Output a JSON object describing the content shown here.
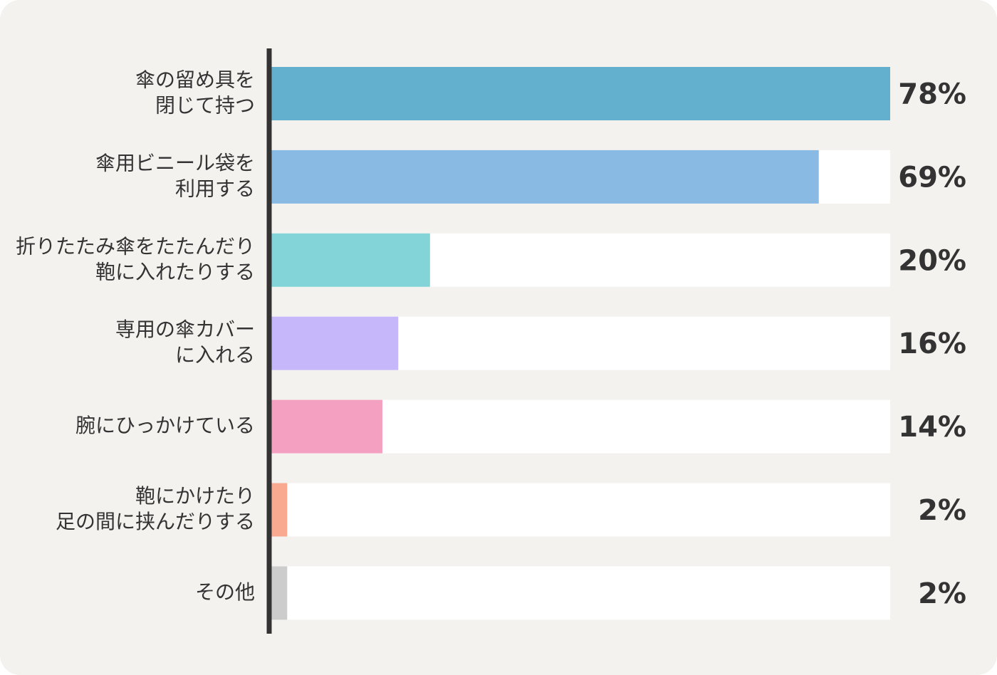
{
  "chart_data": {
    "type": "bar",
    "orientation": "horizontal",
    "categories": [
      [
        "傘の留め具を",
        "閉じて持つ"
      ],
      [
        "傘用ビニール袋を",
        "利用する"
      ],
      [
        "折りたたみ傘をたたんだり",
        "鞄に入れたりする"
      ],
      [
        "専用の傘カバー",
        "に入れる"
      ],
      [
        "腕にひっかけている"
      ],
      [
        "鞄にかけたり",
        "足の間に挟んだりする"
      ],
      [
        "その他"
      ]
    ],
    "values": [
      78,
      69,
      20,
      16,
      14,
      2,
      2
    ],
    "value_labels": [
      "78%",
      "69%",
      "20%",
      "16%",
      "14%",
      "2%",
      "2%"
    ],
    "xlim": [
      0,
      78
    ],
    "colors": [
      "#62b0cd",
      "#89bae3",
      "#82d4d8",
      "#c5b7fa",
      "#f4a0c0",
      "#f9a98f",
      "#cccccc"
    ],
    "track_color": "#ffffff",
    "axis_color": "#333333",
    "background": "#f3f2ef",
    "grid": false,
    "legend": "none"
  }
}
